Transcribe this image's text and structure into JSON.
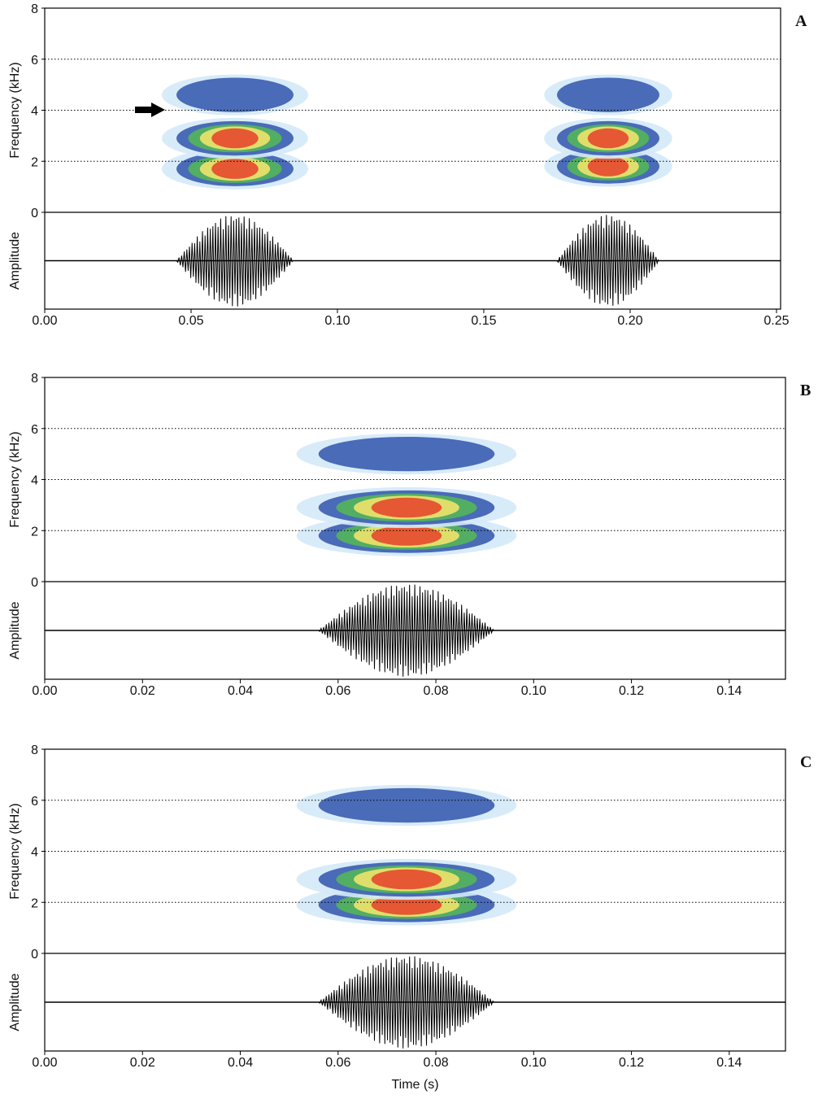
{
  "chart_data": [
    {
      "type": "spectrogram",
      "label": "A",
      "ylabel": "Frequency (kHz)",
      "amplitude_label": "Amplitude",
      "xlim": [
        0,
        0.2514
      ],
      "xticks": [
        {
          "value": 0,
          "label": "0.00"
        },
        {
          "value": 0.05,
          "label": "0.05"
        },
        {
          "value": 0.1,
          "label": "0.10"
        },
        {
          "value": 0.15,
          "label": "0.15"
        },
        {
          "value": 0.2,
          "label": "0.20"
        },
        {
          "value": 0.25,
          "label": "0.25"
        }
      ],
      "ylim": [
        0,
        8
      ],
      "yticks": [
        0,
        2,
        4,
        6,
        8
      ],
      "calls": [
        {
          "start": 0.045,
          "end": 0.085,
          "bands": [
            1.7,
            2.9,
            4.6
          ]
        },
        {
          "start": 0.175,
          "end": 0.21,
          "bands": [
            1.8,
            2.9,
            4.6
          ]
        }
      ]
    },
    {
      "type": "spectrogram",
      "label": "B",
      "ylabel": "Frequency (kHz)",
      "amplitude_label": "Amplitude",
      "xlim": [
        0,
        0.1515
      ],
      "xticks": [
        {
          "value": 0,
          "label": "0.00"
        },
        {
          "value": 0.02,
          "label": "0.02"
        },
        {
          "value": 0.04,
          "label": "0.04"
        },
        {
          "value": 0.06,
          "label": "0.06"
        },
        {
          "value": 0.08,
          "label": "0.08"
        },
        {
          "value": 0.1,
          "label": "0.10"
        },
        {
          "value": 0.12,
          "label": "0.12"
        },
        {
          "value": 0.14,
          "label": "0.14"
        }
      ],
      "ylim": [
        0,
        8
      ],
      "yticks": [
        0,
        2,
        4,
        6,
        8
      ],
      "calls": [
        {
          "start": 0.056,
          "end": 0.092,
          "bands": [
            1.8,
            2.9,
            5.0
          ]
        }
      ]
    },
    {
      "type": "spectrogram",
      "label": "C",
      "ylabel": "Frequency (kHz)",
      "amplitude_label": "Amplitude",
      "xlabel": "Time (s)",
      "xlim": [
        0,
        0.1515
      ],
      "xticks": [
        {
          "value": 0,
          "label": "0.00"
        },
        {
          "value": 0.02,
          "label": "0.02"
        },
        {
          "value": 0.04,
          "label": "0.04"
        },
        {
          "value": 0.06,
          "label": "0.06"
        },
        {
          "value": 0.08,
          "label": "0.08"
        },
        {
          "value": 0.1,
          "label": "0.10"
        },
        {
          "value": 0.12,
          "label": "0.12"
        },
        {
          "value": 0.14,
          "label": "0.14"
        }
      ],
      "ylim": [
        0,
        8
      ],
      "yticks": [
        0,
        2,
        4,
        6,
        8
      ],
      "calls": [
        {
          "start": 0.056,
          "end": 0.092,
          "bands": [
            1.9,
            2.9,
            5.8
          ]
        }
      ]
    }
  ]
}
